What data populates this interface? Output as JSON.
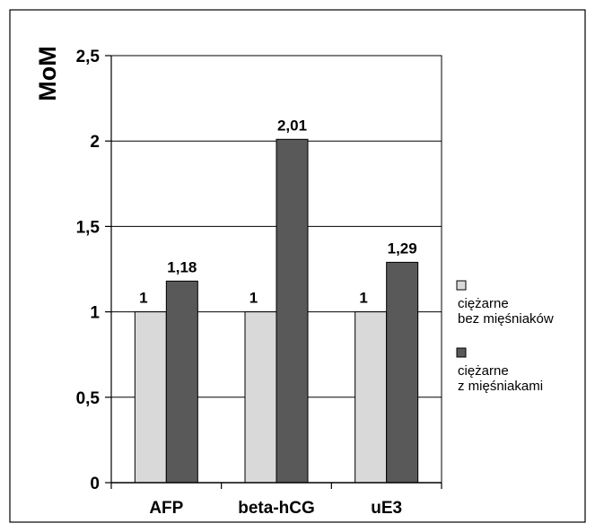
{
  "chart_data": {
    "type": "bar",
    "title": "",
    "xlabel": "",
    "ylabel": "MoM",
    "ylim": [
      0,
      2.5
    ],
    "yticks": [
      "0",
      "0,5",
      "1",
      "1,5",
      "2",
      "2,5"
    ],
    "ytick_values": [
      0,
      0.5,
      1,
      1.5,
      2,
      2.5
    ],
    "grid": true,
    "legend_position": "right",
    "categories": [
      "AFP",
      "beta-hCG",
      "uE3"
    ],
    "series": [
      {
        "name": "ciężarne bez mięśniaków",
        "name_lines": [
          "ciężarne",
          "bez mięśniaków"
        ],
        "color": "#d9d9d9",
        "values": [
          1,
          1,
          1
        ],
        "labels": [
          "1",
          "1",
          "1"
        ]
      },
      {
        "name": "ciężarne z mięśniakami",
        "name_lines": [
          "ciężarne",
          "z mięśniakami"
        ],
        "color": "#595959",
        "values": [
          1.18,
          2.01,
          1.29
        ],
        "labels": [
          "1,18",
          "2,01",
          "1,29"
        ]
      }
    ]
  }
}
